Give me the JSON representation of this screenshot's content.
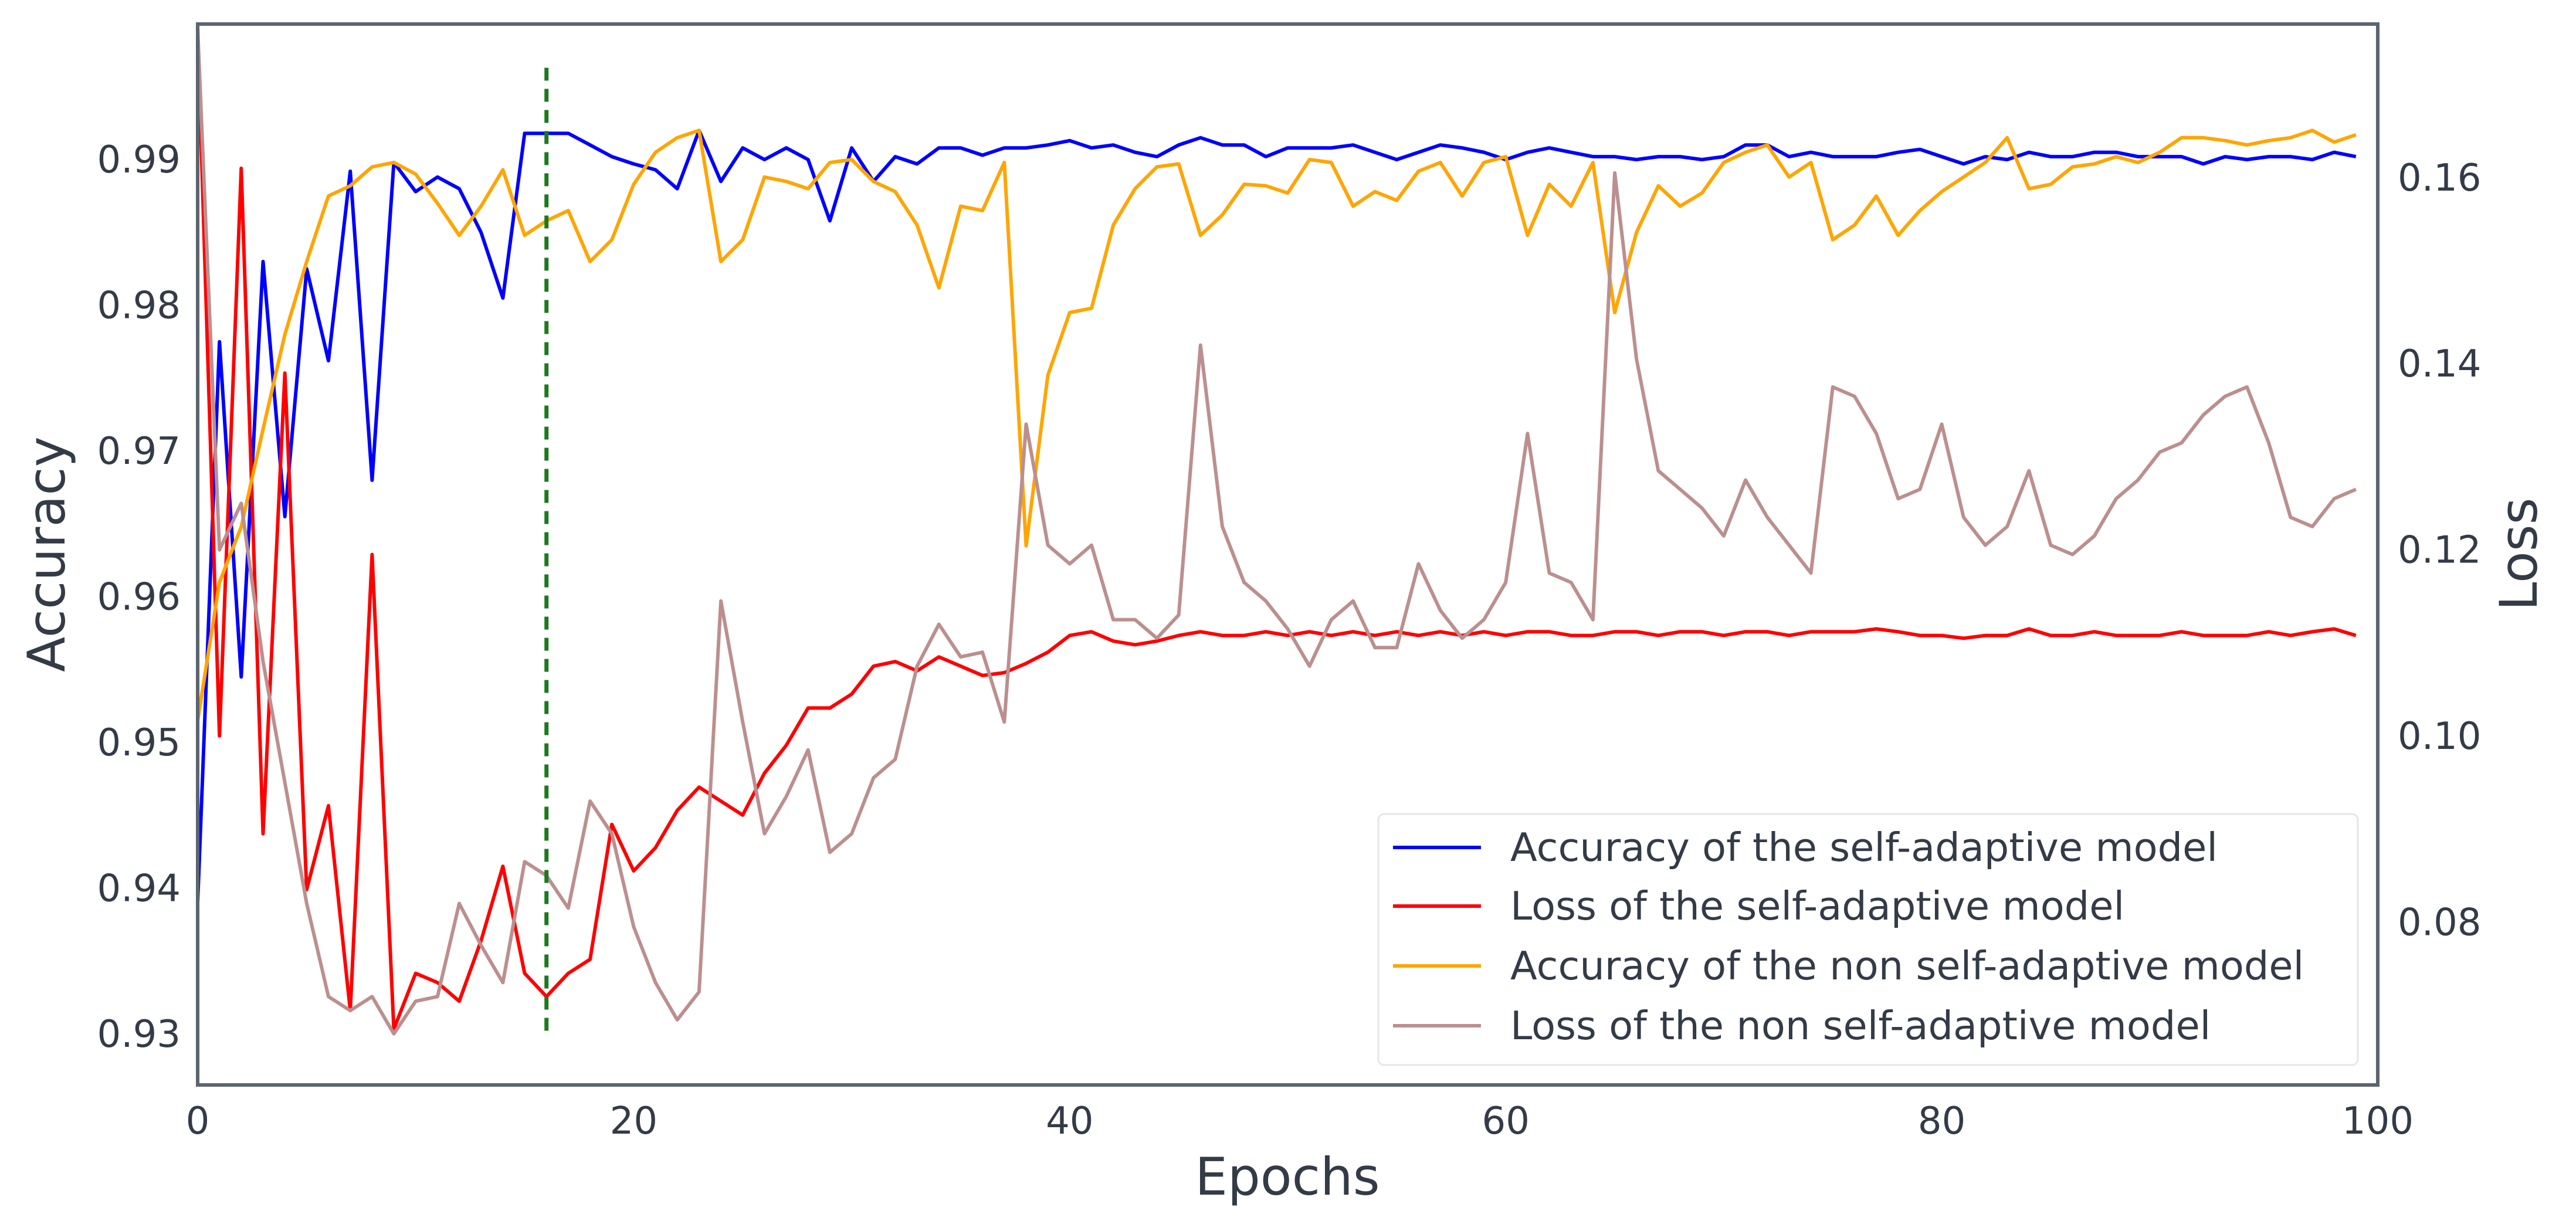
{
  "chart_data": {
    "type": "line",
    "title": "",
    "xlabel": "Epochs",
    "ylabel": "Accuracy",
    "y2label": "Loss",
    "xlim": [
      0,
      100
    ],
    "ylim": [
      0.9265,
      0.9993
    ],
    "y2lim": [
      0.0625,
      0.1765
    ],
    "xticks": [
      "0",
      "20",
      "40",
      "60",
      "80",
      "100"
    ],
    "yticks": [
      "0.93",
      "0.94",
      "0.95",
      "0.96",
      "0.97",
      "0.98",
      "0.99"
    ],
    "y2ticks": [
      "0.08",
      "0.10",
      "0.12",
      "0.14",
      "0.16"
    ],
    "grid": false,
    "legend_position": "bottom-right",
    "vline": {
      "x": 16,
      "color": "#1b7a1b",
      "style": "dashed"
    },
    "series": [
      {
        "name": "Accuracy of the self-adaptive model",
        "axis": "left",
        "color": "#0000ff",
        "x": [
          0,
          1,
          2,
          3,
          4,
          5,
          6,
          7,
          8,
          9,
          10,
          11,
          12,
          13,
          14,
          15,
          16,
          17,
          18,
          19,
          20,
          21,
          22,
          23,
          24,
          25,
          26,
          27,
          28,
          29,
          30,
          31,
          32,
          33,
          34,
          35,
          36,
          37,
          38,
          39,
          40,
          41,
          42,
          43,
          44,
          45,
          46,
          47,
          48,
          49,
          50,
          51,
          52,
          53,
          54,
          55,
          56,
          57,
          58,
          59,
          60,
          61,
          62,
          63,
          64,
          65,
          66,
          67,
          68,
          69,
          70,
          71,
          72,
          73,
          74,
          75,
          76,
          77,
          78,
          79,
          80,
          81,
          82,
          83,
          84,
          85,
          86,
          87,
          88,
          89,
          90,
          91,
          92,
          93,
          94,
          95,
          96,
          97,
          98,
          99
        ],
        "values": [
          0.939,
          0.9775,
          0.9545,
          0.983,
          0.9655,
          0.9825,
          0.9762,
          0.9892,
          0.968,
          0.9898,
          0.9878,
          0.9888,
          0.988,
          0.985,
          0.9805,
          0.9918,
          0.9918,
          0.9918,
          0.991,
          0.9902,
          0.9897,
          0.9893,
          0.988,
          0.992,
          0.9885,
          0.9908,
          0.99,
          0.9908,
          0.99,
          0.9858,
          0.9908,
          0.9885,
          0.9902,
          0.9897,
          0.9908,
          0.9908,
          0.9903,
          0.9908,
          0.9908,
          0.991,
          0.9913,
          0.9908,
          0.991,
          0.9905,
          0.9902,
          0.991,
          0.9915,
          0.991,
          0.991,
          0.9902,
          0.9908,
          0.9908,
          0.9908,
          0.991,
          0.9905,
          0.99,
          0.9905,
          0.991,
          0.9908,
          0.9905,
          0.99,
          0.9905,
          0.9908,
          0.9905,
          0.9902,
          0.9902,
          0.99,
          0.9902,
          0.9902,
          0.99,
          0.9902,
          0.991,
          0.991,
          0.9902,
          0.9905,
          0.9902,
          0.9902,
          0.9902,
          0.9905,
          0.9907,
          0.9902,
          0.9897,
          0.9902,
          0.99,
          0.9905,
          0.9902,
          0.9902,
          0.9905,
          0.9905,
          0.9902,
          0.9902,
          0.9902,
          0.9897,
          0.9902,
          0.99,
          0.9902,
          0.9902,
          0.99,
          0.9905,
          0.9902
        ]
      },
      {
        "name": "Loss of the self-adaptive model",
        "axis": "right",
        "color": "#ff0000",
        "x": [
          0,
          1,
          2,
          3,
          4,
          5,
          6,
          7,
          8,
          9,
          10,
          11,
          12,
          13,
          14,
          15,
          16,
          17,
          18,
          19,
          20,
          21,
          22,
          23,
          24,
          25,
          26,
          27,
          28,
          29,
          30,
          31,
          32,
          33,
          34,
          35,
          36,
          37,
          38,
          39,
          40,
          41,
          42,
          43,
          44,
          45,
          46,
          47,
          48,
          49,
          50,
          51,
          52,
          53,
          54,
          55,
          56,
          57,
          58,
          59,
          60,
          61,
          62,
          63,
          64,
          65,
          66,
          67,
          68,
          69,
          70,
          71,
          72,
          73,
          74,
          75,
          76,
          77,
          78,
          79,
          80,
          81,
          82,
          83,
          84,
          85,
          86,
          87,
          88,
          89,
          90,
          91,
          92,
          93,
          94,
          95,
          96,
          97,
          98,
          99
        ],
        "values": [
          0.176,
          0.1,
          0.161,
          0.0895,
          0.139,
          0.0835,
          0.0925,
          0.0705,
          0.1195,
          0.0685,
          0.0745,
          0.0735,
          0.0715,
          0.078,
          0.086,
          0.0745,
          0.072,
          0.0745,
          0.076,
          0.0905,
          0.0855,
          0.088,
          0.092,
          0.0945,
          0.093,
          0.0915,
          0.096,
          0.099,
          0.103,
          0.103,
          0.1045,
          0.1075,
          0.108,
          0.107,
          0.1085,
          0.1075,
          0.1065,
          0.1068,
          0.1078,
          0.109,
          0.1108,
          0.1112,
          0.1102,
          0.1098,
          0.1102,
          0.1108,
          0.1112,
          0.1108,
          0.1108,
          0.1112,
          0.1108,
          0.1112,
          0.1108,
          0.1112,
          0.1108,
          0.1112,
          0.1108,
          0.1112,
          0.1108,
          0.1112,
          0.1108,
          0.1112,
          0.1112,
          0.1108,
          0.1108,
          0.1112,
          0.1112,
          0.1108,
          0.1112,
          0.1112,
          0.1108,
          0.1112,
          0.1112,
          0.1108,
          0.1112,
          0.1112,
          0.1112,
          0.1115,
          0.1112,
          0.1108,
          0.1108,
          0.1105,
          0.1108,
          0.1108,
          0.1115,
          0.1108,
          0.1108,
          0.1112,
          0.1108,
          0.1108,
          0.1108,
          0.1112,
          0.1108,
          0.1108,
          0.1108,
          0.1112,
          0.1108,
          0.1112,
          0.1115,
          0.1108
        ]
      },
      {
        "name": "Accuracy of the non self-adaptive model",
        "axis": "left",
        "color": "#ffa500",
        "x": [
          0,
          1,
          2,
          3,
          4,
          5,
          6,
          7,
          8,
          9,
          10,
          11,
          12,
          13,
          14,
          15,
          16,
          17,
          18,
          19,
          20,
          21,
          22,
          23,
          24,
          25,
          26,
          27,
          28,
          29,
          30,
          31,
          32,
          33,
          34,
          35,
          36,
          37,
          38,
          39,
          40,
          41,
          42,
          43,
          44,
          45,
          46,
          47,
          48,
          49,
          50,
          51,
          52,
          53,
          54,
          55,
          56,
          57,
          58,
          59,
          60,
          61,
          62,
          63,
          64,
          65,
          66,
          67,
          68,
          69,
          70,
          71,
          72,
          73,
          74,
          75,
          76,
          77,
          78,
          79,
          80,
          81,
          82,
          83,
          84,
          85,
          86,
          87,
          88,
          89,
          90,
          91,
          92,
          93,
          94,
          95,
          96,
          97,
          98,
          99
        ],
        "values": [
          0.9515,
          0.961,
          0.9648,
          0.9715,
          0.978,
          0.983,
          0.9875,
          0.9882,
          0.9895,
          0.9898,
          0.989,
          0.987,
          0.9848,
          0.9868,
          0.9893,
          0.9848,
          0.9858,
          0.9865,
          0.983,
          0.9845,
          0.9883,
          0.9905,
          0.9915,
          0.992,
          0.983,
          0.9845,
          0.9888,
          0.9885,
          0.988,
          0.9898,
          0.99,
          0.9885,
          0.9878,
          0.9855,
          0.9812,
          0.9868,
          0.9865,
          0.9898,
          0.9635,
          0.9752,
          0.9795,
          0.9798,
          0.9855,
          0.988,
          0.9895,
          0.9897,
          0.9848,
          0.9862,
          0.9883,
          0.9882,
          0.9877,
          0.99,
          0.9898,
          0.9868,
          0.9878,
          0.9872,
          0.9892,
          0.9898,
          0.9875,
          0.9898,
          0.9902,
          0.9848,
          0.9883,
          0.9868,
          0.9898,
          0.9795,
          0.985,
          0.9882,
          0.9868,
          0.9877,
          0.9898,
          0.9905,
          0.991,
          0.9888,
          0.9898,
          0.9845,
          0.9855,
          0.9875,
          0.9848,
          0.9865,
          0.9878,
          0.9888,
          0.9898,
          0.9915,
          0.988,
          0.9883,
          0.9895,
          0.9897,
          0.9902,
          0.9898,
          0.9905,
          0.9915,
          0.9915,
          0.9913,
          0.991,
          0.9913,
          0.9915,
          0.992,
          0.9912,
          0.9917
        ]
      },
      {
        "name": "Loss of the non self-adaptive model",
        "axis": "right",
        "color": "#bc8f8f",
        "x": [
          0,
          1,
          2,
          3,
          4,
          5,
          6,
          7,
          8,
          9,
          10,
          11,
          12,
          13,
          14,
          15,
          16,
          17,
          18,
          19,
          20,
          21,
          22,
          23,
          24,
          25,
          26,
          27,
          28,
          29,
          30,
          31,
          32,
          33,
          34,
          35,
          36,
          37,
          38,
          39,
          40,
          41,
          42,
          43,
          44,
          45,
          46,
          47,
          48,
          49,
          50,
          51,
          52,
          53,
          54,
          55,
          56,
          57,
          58,
          59,
          60,
          61,
          62,
          63,
          64,
          65,
          66,
          67,
          68,
          69,
          70,
          71,
          72,
          73,
          74,
          75,
          76,
          77,
          78,
          79,
          80,
          81,
          82,
          83,
          84,
          85,
          86,
          87,
          88,
          89,
          90,
          91,
          92,
          93,
          94,
          95,
          96,
          97,
          98,
          99
        ],
        "values": [
          0.176,
          0.12,
          0.125,
          0.108,
          0.095,
          0.082,
          0.072,
          0.0705,
          0.072,
          0.068,
          0.0715,
          0.072,
          0.082,
          0.0775,
          0.0735,
          0.0865,
          0.085,
          0.0815,
          0.093,
          0.0895,
          0.0795,
          0.0735,
          0.0695,
          0.0725,
          0.1145,
          0.1015,
          0.0895,
          0.0935,
          0.0985,
          0.0875,
          0.0895,
          0.0955,
          0.0975,
          0.1075,
          0.112,
          0.1085,
          0.109,
          0.1015,
          0.1335,
          0.1205,
          0.1185,
          0.1205,
          0.1125,
          0.1125,
          0.1105,
          0.113,
          0.142,
          0.1225,
          0.1165,
          0.1145,
          0.1115,
          0.1075,
          0.1125,
          0.1145,
          0.1095,
          0.1095,
          0.1185,
          0.1135,
          0.1105,
          0.1125,
          0.1165,
          0.1325,
          0.1175,
          0.1165,
          0.1125,
          0.1605,
          0.1405,
          0.1285,
          0.1265,
          0.1245,
          0.1215,
          0.1275,
          0.1235,
          0.1205,
          0.1175,
          0.1375,
          0.1365,
          0.1325,
          0.1255,
          0.1265,
          0.1335,
          0.1235,
          0.1205,
          0.1225,
          0.1285,
          0.1205,
          0.1195,
          0.1215,
          0.1255,
          0.1275,
          0.1305,
          0.1315,
          0.1345,
          0.1365,
          0.1375,
          0.1315,
          0.1235,
          0.1225,
          0.1255,
          0.1265
        ]
      }
    ]
  }
}
